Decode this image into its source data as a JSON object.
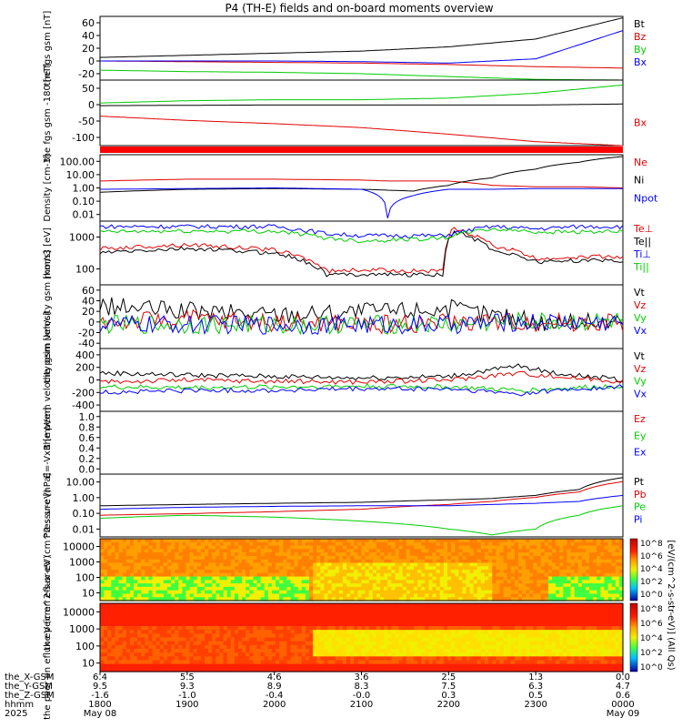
{
  "title": "P4 (TH-E) fields and on-board moments overview",
  "colors": {
    "black": "#000000",
    "red": "#e00000",
    "green": "#00cc00",
    "blue": "#0000ff",
    "orange": "#f0a000"
  },
  "x_axis": {
    "tick_labels": [
      {
        "x_pos": "6.4",
        "y_pos": "9.5",
        "z_pos": "-1.6",
        "hhmm": "1800",
        "date": "May 08"
      },
      {
        "x_pos": "5.5",
        "y_pos": "9.3",
        "z_pos": "-1.0",
        "hhmm": "1900",
        "date": ""
      },
      {
        "x_pos": "4.6",
        "y_pos": "8.9",
        "z_pos": "-0.4",
        "hhmm": "2000",
        "date": ""
      },
      {
        "x_pos": "3.6",
        "y_pos": "8.3",
        "z_pos": "-0.0",
        "hhmm": "2100",
        "date": ""
      },
      {
        "x_pos": "2.5",
        "y_pos": "7.5",
        "z_pos": "0.3",
        "hhmm": "2200",
        "date": ""
      },
      {
        "x_pos": "1.3",
        "y_pos": "6.3",
        "z_pos": "0.5",
        "hhmm": "2300",
        "date": ""
      },
      {
        "x_pos": "0.0",
        "y_pos": "4.7",
        "z_pos": "0.6",
        "hhmm": "0000",
        "date": "May 09"
      }
    ],
    "row_labels": [
      "the_X-GSM",
      "the_Y-GSM",
      "the_Z-GSM",
      "hhmm",
      "2025"
    ]
  },
  "chart_data": [
    {
      "type": "line",
      "panel": "fgs_gsm",
      "ylabel": "the fgs gsm [nT]",
      "yticks": [
        "60",
        "40",
        "20",
        "0",
        "-20"
      ],
      "ylim": [
        -20,
        70
      ],
      "x": [
        0,
        1,
        2,
        3,
        4,
        5,
        6
      ],
      "series": [
        {
          "name": "Bt",
          "color": "black",
          "values": [
            12,
            15,
            18,
            21,
            27,
            38,
            68
          ]
        },
        {
          "name": "Bz",
          "color": "red",
          "values": [
            7,
            6,
            5,
            4,
            2,
            -1,
            -3
          ]
        },
        {
          "name": "By",
          "color": "green",
          "values": [
            -6,
            -8,
            -9,
            -11,
            -15,
            -19,
            -20
          ]
        },
        {
          "name": "Bx",
          "color": "blue",
          "values": [
            7,
            7,
            7,
            6,
            4,
            10,
            50
          ]
        }
      ]
    },
    {
      "type": "line",
      "panel": "fgs_gsm_180",
      "ylabel": "the fgs gsm -180 [nT]",
      "yticks": [
        "50",
        "0",
        "-50",
        "-100"
      ],
      "ylim": [
        -125,
        75
      ],
      "x": [
        0,
        1,
        2,
        3,
        4,
        5,
        6
      ],
      "series": [
        {
          "name": "",
          "color": "green",
          "values": [
            5,
            12,
            15,
            15,
            20,
            35,
            60
          ]
        },
        {
          "name": "",
          "color": "black",
          "values": [
            -3,
            -2,
            -1,
            -1,
            -1,
            -1,
            2
          ]
        },
        {
          "name": "Bx",
          "color": "red",
          "values": [
            -35,
            -48,
            -58,
            -70,
            -90,
            -113,
            -125
          ]
        }
      ]
    },
    {
      "type": "line",
      "panel": "density",
      "scale": "log",
      "ylabel": "Density [cm-3]",
      "yticks": [
        "100.00",
        "10.00",
        "1.00",
        "0.10",
        "0.01"
      ],
      "ylim": [
        0.005,
        200
      ],
      "x": [
        0,
        1,
        2,
        3,
        3.3,
        3.6,
        4,
        4.5,
        5,
        5.5,
        6
      ],
      "series": [
        {
          "name": "Ne",
          "color": "red",
          "values": [
            3,
            4,
            4,
            3.5,
            3,
            3,
            3,
            1.5,
            1.2,
            1.2,
            1
          ]
        },
        {
          "name": "Ni",
          "color": "black",
          "values": [
            0.5,
            0.8,
            0.9,
            0.8,
            0.7,
            0.6,
            1.5,
            5,
            20,
            60,
            150
          ]
        },
        {
          "name": "Npot",
          "color": "blue",
          "values": [
            0.8,
            0.9,
            1,
            0.8,
            0.008,
            0.3,
            0.8,
            0.8,
            0.9,
            0.9,
            0.9
          ]
        }
      ]
    },
    {
      "type": "line",
      "panel": "temperature",
      "scale": "log",
      "ylabel": "mom3 [eV]",
      "yticks": [
        "1000",
        "100"
      ],
      "ylim": [
        70,
        9000
      ],
      "x": [
        0,
        1,
        2,
        2.6,
        3,
        3.95,
        4.05,
        4.5,
        5,
        5.5,
        6
      ],
      "series": [
        {
          "name": "Te⊥",
          "color": "red",
          "values": [
            1100,
            1500,
            1000,
            200,
            220,
            200,
            5000,
            1400,
            500,
            600,
            600
          ]
        },
        {
          "name": "Te||",
          "color": "black",
          "values": [
            800,
            1100,
            800,
            150,
            160,
            150,
            4000,
            1000,
            400,
            450,
            450
          ]
        },
        {
          "name": "Ti⊥",
          "color": "blue",
          "values": [
            6000,
            6000,
            6000,
            3500,
            3000,
            3000,
            3500,
            6000,
            5000,
            6000,
            6000
          ]
        },
        {
          "name": "Ti||",
          "color": "green",
          "values": [
            4000,
            4200,
            4200,
            2500,
            2000,
            2500,
            3000,
            5000,
            4000,
            4000,
            4000
          ]
        }
      ]
    },
    {
      "type": "line",
      "panel": "peim_velocity",
      "ylabel": "the peim velocity gsm [km/s]",
      "yticks": [
        "60",
        "40",
        "20",
        "0",
        "-20",
        "-40"
      ],
      "ylim": [
        -50,
        70
      ],
      "x": [
        0,
        1,
        2,
        3,
        4,
        4.7,
        5,
        6
      ],
      "series": [
        {
          "name": "Vt",
          "color": "black",
          "values": [
            30,
            20,
            15,
            20,
            25,
            10,
            0,
            0
          ]
        },
        {
          "name": "Vz",
          "color": "red",
          "values": [
            0,
            5,
            0,
            -5,
            0,
            0,
            0,
            0
          ]
        },
        {
          "name": "Vy",
          "color": "green",
          "values": [
            -5,
            -5,
            -5,
            -5,
            -5,
            0,
            0,
            0
          ]
        },
        {
          "name": "Vx",
          "color": "blue",
          "values": [
            -5,
            -5,
            -5,
            -5,
            -5,
            0,
            0,
            0
          ]
        }
      ]
    },
    {
      "type": "line",
      "panel": "peem_velocity",
      "ylabel": "the peem velocity gsm [km/s]",
      "yticks": [
        "400",
        "200",
        "0",
        "-200",
        "-400"
      ],
      "ylim": [
        -400,
        500
      ],
      "x": [
        0,
        1,
        2,
        3,
        4,
        4.8,
        5.2,
        6
      ],
      "series": [
        {
          "name": "Vt",
          "color": "black",
          "values": [
            150,
            120,
            100,
            80,
            100,
            250,
            150,
            50
          ]
        },
        {
          "name": "Vz",
          "color": "red",
          "values": [
            20,
            50,
            30,
            20,
            50,
            150,
            100,
            30
          ]
        },
        {
          "name": "Vy",
          "color": "green",
          "values": [
            -50,
            -60,
            -50,
            -40,
            -50,
            -100,
            -80,
            -30
          ]
        },
        {
          "name": "Vx",
          "color": "blue",
          "values": [
            -130,
            -100,
            -100,
            -80,
            -80,
            -150,
            -100,
            -50
          ]
        }
      ]
    },
    {
      "type": "line",
      "panel": "efield",
      "ylabel": "E=-VxB [mV/m]",
      "yticks": [
        "1.0",
        "0.8",
        "0.6",
        "0.4",
        "0.2",
        "0.0"
      ],
      "ylim": [
        0,
        1
      ],
      "x": [],
      "series": [
        {
          "name": "Ez",
          "color": "red",
          "values": []
        },
        {
          "name": "Ey",
          "color": "green",
          "values": []
        },
        {
          "name": "Ex",
          "color": "blue",
          "values": []
        }
      ]
    },
    {
      "type": "line",
      "panel": "pressure",
      "scale": "log",
      "ylabel": "Pressure [nPa]",
      "yticks": [
        "10.00",
        "1.00",
        "0.10",
        "0.01"
      ],
      "ylim": [
        0.008,
        12
      ],
      "x": [
        0,
        1,
        2,
        3,
        4,
        4.5,
        5,
        5.5,
        6
      ],
      "series": [
        {
          "name": "Pt",
          "color": "black",
          "values": [
            0.3,
            0.35,
            0.4,
            0.45,
            0.6,
            0.7,
            1,
            2,
            8
          ]
        },
        {
          "name": "Pb",
          "color": "red",
          "values": [
            0.1,
            0.12,
            0.15,
            0.2,
            0.35,
            0.5,
            0.8,
            1.5,
            5
          ]
        },
        {
          "name": "Pe",
          "color": "green",
          "values": [
            0.07,
            0.1,
            0.08,
            0.05,
            0.02,
            0.01,
            0.02,
            0.1,
            0.3
          ]
        },
        {
          "name": "Pi",
          "color": "blue",
          "values": [
            0.2,
            0.25,
            0.28,
            0.3,
            0.3,
            0.35,
            0.4,
            0.5,
            1
          ]
        }
      ]
    },
    {
      "type": "heatmap",
      "panel": "peir_spectrogram",
      "scale": "log",
      "ylabel": "the peir en eflux eV (cm^2-s-sr-eV)",
      "yticks": [
        "10000",
        "1000",
        "100",
        "10"
      ],
      "ylim": [
        5,
        25000
      ]
    },
    {
      "type": "heatmap",
      "panel": "peer_spectrogram",
      "scale": "log",
      "ylabel": "the peer en eflux eV (cm^2-s-sr-eV)",
      "yticks": [
        "10000",
        "1000",
        "100",
        "10"
      ],
      "ylim": [
        5,
        25000
      ]
    }
  ],
  "colorbar": {
    "label": "[eV/(cm^2-s-str-eV)] (All Qs)",
    "ticks": [
      "10^8",
      "10^6",
      "10^4",
      "10^2",
      "10^0"
    ]
  }
}
